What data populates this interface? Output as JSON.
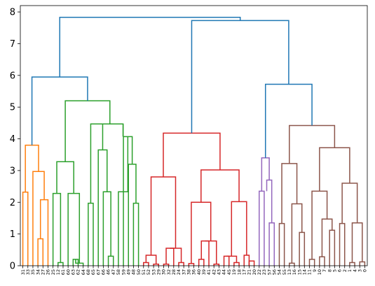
{
  "chart_data": {
    "type": "dendrogram",
    "ylim": [
      0,
      8.2
    ],
    "yticks": [
      "0",
      "1",
      "2",
      "3",
      "4",
      "5",
      "6",
      "7",
      "8"
    ],
    "grid": false,
    "leaf_labels": [
      "31",
      "33",
      "35",
      "34",
      "27",
      "26",
      "25",
      "12",
      "61",
      "60",
      "63",
      "62",
      "64",
      "68",
      "65",
      "67",
      "66",
      "46",
      "47",
      "58",
      "59",
      "49",
      "48",
      "50",
      "51",
      "52",
      "53",
      "29",
      "30",
      "32",
      "28",
      "24",
      "37",
      "38",
      "36",
      "40",
      "39",
      "41",
      "42",
      "43",
      "44",
      "45",
      "19",
      "18",
      "17",
      "21",
      "20",
      "22",
      "23",
      "57",
      "56",
      "54",
      "55",
      "13",
      "16",
      "15",
      "14",
      "11",
      "9",
      "10",
      "7",
      "8",
      "5",
      "6",
      "2",
      "1",
      "4",
      "3",
      "0"
    ],
    "links": [
      {
        "color": "#ff7f0e",
        "left": 0,
        "right": 1,
        "height": 2.32,
        "left_h": 0,
        "right_h": 0
      },
      {
        "color": "#ff7f0e",
        "left": 3,
        "right": 4,
        "height": 0.85,
        "left_h": 0,
        "right_h": 0
      },
      {
        "color": "#ff7f0e",
        "left": 3.5,
        "right": 5,
        "height": 2.08,
        "left_h": 0.85,
        "right_h": 0
      },
      {
        "color": "#ff7f0e",
        "left": 2,
        "right": 4.25,
        "height": 2.97,
        "left_h": 0,
        "right_h": 2.08
      },
      {
        "color": "#ff7f0e",
        "left": 0.5,
        "right": 3.125,
        "height": 3.8,
        "left_h": 2.32,
        "right_h": 2.97
      },
      {
        "color": "#2ca02c",
        "left": 7,
        "right": 8,
        "height": 0.1,
        "left_h": 0,
        "right_h": 0
      },
      {
        "color": "#2ca02c",
        "left": 6,
        "right": 7.5,
        "height": 2.28,
        "left_h": 0,
        "right_h": 0.1
      },
      {
        "color": "#2ca02c",
        "left": 10,
        "right": 11,
        "height": 0.2,
        "left_h": 0,
        "right_h": 0
      },
      {
        "color": "#2ca02c",
        "left": 10.5,
        "right": 12,
        "height": 0.08,
        "left_h": 0.2,
        "right_h": 0
      },
      {
        "color": "#2ca02c",
        "left": 9,
        "right": 11.25,
        "height": 2.28,
        "left_h": 0,
        "right_h": 0.08
      },
      {
        "color": "#2ca02c",
        "left": 6.75,
        "right": 10.125,
        "height": 3.28,
        "left_h": 2.28,
        "right_h": 2.28
      },
      {
        "color": "#2ca02c",
        "left": 13,
        "right": 14,
        "height": 1.97,
        "left_h": 0,
        "right_h": 0
      },
      {
        "color": "#2ca02c",
        "left": 17,
        "right": 18,
        "height": 0.3,
        "left_h": 0,
        "right_h": 0
      },
      {
        "color": "#2ca02c",
        "left": 16,
        "right": 17.5,
        "height": 2.33,
        "left_h": 0,
        "right_h": 0.3
      },
      {
        "color": "#2ca02c",
        "left": 15,
        "right": 16.75,
        "height": 3.65,
        "left_h": 0,
        "right_h": 2.33
      },
      {
        "color": "#2ca02c",
        "left": 13.5,
        "right": 15.875,
        "height": 4.47,
        "left_h": 1.97,
        "right_h": 3.65
      },
      {
        "color": "#2ca02c",
        "left": 22,
        "right": 23,
        "height": 1.97,
        "left_h": 0,
        "right_h": 0
      },
      {
        "color": "#2ca02c",
        "left": 21,
        "right": 22.5,
        "height": 3.2,
        "left_h": 0,
        "right_h": 1.97
      },
      {
        "color": "#2ca02c",
        "left": 20,
        "right": 21.75,
        "height": 4.07,
        "left_h": 0,
        "right_h": 3.2
      },
      {
        "color": "#2ca02c",
        "left": 19,
        "right": 20.875,
        "height": 2.33,
        "left_h": 0,
        "right_h": 4.07
      },
      {
        "color": "#2ca02c",
        "left": 19.9375,
        "right": 19.9375,
        "height": 4.47,
        "left_h": 4.07,
        "right_h": 4.07
      },
      {
        "color": "#2ca02c",
        "left": 14.6875,
        "right": 19.9375,
        "height": 4.47,
        "left_h": 4.47,
        "right_h": 4.07
      },
      {
        "color": "#2ca02c",
        "left": 8.4375,
        "right": 17.3125,
        "height": 5.2,
        "left_h": 3.28,
        "right_h": 4.47
      },
      {
        "color": "#d62728",
        "left": 24,
        "right": 25,
        "height": 0.1,
        "left_h": 0,
        "right_h": 0
      },
      {
        "color": "#d62728",
        "left": 26,
        "right": 27,
        "height": 0.05,
        "left_h": 0,
        "right_h": 0
      },
      {
        "color": "#d62728",
        "left": 24.5,
        "right": 26.5,
        "height": 0.33,
        "left_h": 0.1,
        "right_h": 0.05
      },
      {
        "color": "#d62728",
        "left": 28,
        "right": 29,
        "height": 0.05,
        "left_h": 0,
        "right_h": 0
      },
      {
        "color": "#d62728",
        "left": 28.5,
        "right": 30,
        "height": 0.55,
        "left_h": 0.05,
        "right_h": 0
      },
      {
        "color": "#d62728",
        "left": 31,
        "right": 32,
        "height": 0.1,
        "left_h": 0,
        "right_h": 0
      },
      {
        "color": "#d62728",
        "left": 29.25,
        "right": 31.5,
        "height": 0.55,
        "left_h": 0.55,
        "right_h": 0.1
      },
      {
        "color": "#d62728",
        "left": 25.5,
        "right": 30.375,
        "height": 2.8,
        "left_h": 0.33,
        "right_h": 0.55
      },
      {
        "color": "#d62728",
        "left": 33,
        "right": 34,
        "height": 0.07,
        "left_h": 0,
        "right_h": 0
      },
      {
        "color": "#d62728",
        "left": 35,
        "right": 36,
        "height": 0.2,
        "left_h": 0,
        "right_h": 0
      },
      {
        "color": "#d62728",
        "left": 35.5,
        "right": 37,
        "height": 0.78,
        "left_h": 0.2,
        "right_h": 0
      },
      {
        "color": "#d62728",
        "left": 38,
        "right": 39,
        "height": 0.05,
        "left_h": 0,
        "right_h": 0
      },
      {
        "color": "#d62728",
        "left": 36.25,
        "right": 38.5,
        "height": 0.78,
        "left_h": 0.78,
        "right_h": 0.05
      },
      {
        "color": "#d62728",
        "left": 33.5,
        "right": 37.375,
        "height": 2.0,
        "left_h": 0.07,
        "right_h": 0.78
      },
      {
        "color": "#d62728",
        "left": 40,
        "right": 41,
        "height": 0.3,
        "left_h": 0,
        "right_h": 0
      },
      {
        "color": "#d62728",
        "left": 42,
        "right": 43,
        "height": 0.1,
        "left_h": 0,
        "right_h": 0
      },
      {
        "color": "#d62728",
        "left": 40.5,
        "right": 42.5,
        "height": 0.3,
        "left_h": 0.3,
        "right_h": 0.1
      },
      {
        "color": "#d62728",
        "left": 44,
        "right": 45,
        "height": 0.33,
        "left_h": 0,
        "right_h": 0
      },
      {
        "color": "#d62728",
        "left": 45,
        "right": 46,
        "height": 0.15,
        "left_h": 0,
        "right_h": 0
      },
      {
        "color": "#d62728",
        "left": 41.5,
        "right": 44.5,
        "height": 2.02,
        "left_h": 0.3,
        "right_h": 0.33
      },
      {
        "color": "#d62728",
        "left": 35.4375,
        "right": 43,
        "height": 3.02,
        "left_h": 2.0,
        "right_h": 2.02
      },
      {
        "color": "#d62728",
        "left": 27.9375,
        "right": 39.21875,
        "height": 4.18,
        "left_h": 2.8,
        "right_h": 3.02
      },
      {
        "color": "#9467bd",
        "left": 47,
        "right": 48,
        "height": 2.35,
        "left_h": 0,
        "right_h": 0
      },
      {
        "color": "#9467bd",
        "left": 49,
        "right": 50,
        "height": 1.35,
        "left_h": 0,
        "right_h": 0
      },
      {
        "color": "#9467bd",
        "left": 48.5,
        "right": 49.5,
        "height": 2.7,
        "left_h": 2.35,
        "right_h": 1.35
      },
      {
        "color": "#9467bd",
        "left": 47.5,
        "right": 49,
        "height": 3.4,
        "left_h": 2.35,
        "right_h": 2.7
      },
      {
        "color": "#8c564b",
        "left": 51,
        "right": 52,
        "height": 1.33,
        "left_h": 0,
        "right_h": 0
      },
      {
        "color": "#8c564b",
        "left": 53,
        "right": 54,
        "height": 0.08,
        "left_h": 0,
        "right_h": 0
      },
      {
        "color": "#8c564b",
        "left": 55,
        "right": 56,
        "height": 1.05,
        "left_h": 0,
        "right_h": 0
      },
      {
        "color": "#8c564b",
        "left": 53.5,
        "right": 55.5,
        "height": 1.95,
        "left_h": 0.08,
        "right_h": 1.05
      },
      {
        "color": "#8c564b",
        "left": 51.5,
        "right": 54.5,
        "height": 3.22,
        "left_h": 1.33,
        "right_h": 1.95
      },
      {
        "color": "#8c564b",
        "left": 57,
        "right": 58,
        "height": 0.2,
        "left_h": 0,
        "right_h": 0
      },
      {
        "color": "#8c564b",
        "left": 59,
        "right": 60,
        "height": 0.28,
        "left_h": 0,
        "right_h": 0
      },
      {
        "color": "#8c564b",
        "left": 61,
        "right": 62,
        "height": 1.12,
        "left_h": 0,
        "right_h": 0
      },
      {
        "color": "#8c564b",
        "left": 59.5,
        "right": 61.5,
        "height": 1.47,
        "left_h": 0.28,
        "right_h": 1.12
      },
      {
        "color": "#8c564b",
        "left": 57.5,
        "right": 60.5,
        "height": 2.35,
        "left_h": 0.2,
        "right_h": 1.47
      },
      {
        "color": "#8c564b",
        "left": 63,
        "right": 64,
        "height": 1.33,
        "left_h": 0,
        "right_h": 0
      },
      {
        "color": "#8c564b",
        "left": 65,
        "right": 66,
        "height": 0.1,
        "left_h": 0,
        "right_h": 0
      },
      {
        "color": "#8c564b",
        "left": 67,
        "right": 68,
        "height": 0.12,
        "left_h": 0,
        "right_h": 0
      },
      {
        "color": "#8c564b",
        "left": 65.5,
        "right": 67.5,
        "height": 1.35,
        "left_h": 0.1,
        "right_h": 0.12
      },
      {
        "color": "#8c564b",
        "left": 63.5,
        "right": 66.5,
        "height": 2.6,
        "left_h": 1.33,
        "right_h": 1.35
      },
      {
        "color": "#8c564b",
        "left": 59,
        "right": 65,
        "height": 3.72,
        "left_h": 2.35,
        "right_h": 2.6
      },
      {
        "color": "#8c564b",
        "left": 53,
        "right": 62,
        "height": 4.42,
        "left_h": 3.22,
        "right_h": 3.72
      },
      {
        "color": "#1f77b4",
        "left": 48.25,
        "right": 57.5,
        "height": 5.72,
        "left_h": 3.4,
        "right_h": 4.42
      },
      {
        "color": "#1f77b4",
        "left": 33.578,
        "right": 52.875,
        "height": 7.73,
        "left_h": 4.18,
        "right_h": 5.72
      },
      {
        "color": "#1f77b4",
        "left": 1.8125,
        "right": 12.875,
        "height": 5.95,
        "left_h": 3.8,
        "right_h": 5.2
      },
      {
        "color": "#1f77b4",
        "left": 7.34,
        "right": 43.23,
        "height": 7.83,
        "left_h": 5.95,
        "right_h": 7.73
      }
    ]
  }
}
